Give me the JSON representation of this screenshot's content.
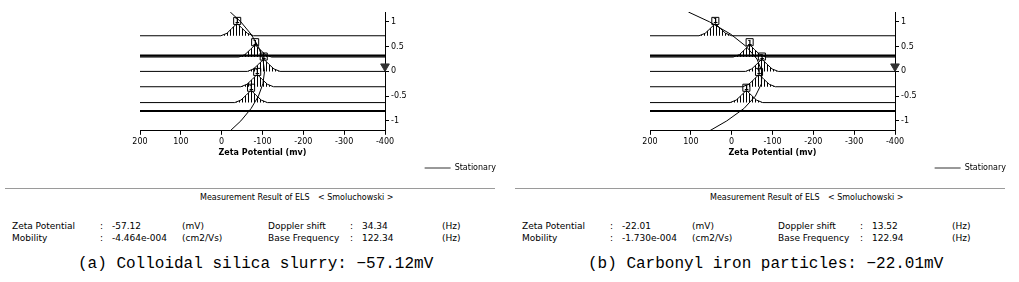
{
  "chart_data": [
    {
      "type": "line",
      "x_label": "Zeta Potential (mv)",
      "xlim": [
        200,
        -400
      ],
      "xticks": [
        200,
        100,
        0,
        -100,
        -200,
        -300,
        -400
      ],
      "ylim": [
        -1.2,
        1.2
      ],
      "yticks": [
        -1,
        -0.5,
        0,
        0.5,
        1
      ],
      "grid": false,
      "legend": "bottom-right",
      "series": [
        {
          "type": "line",
          "color": "#000000",
          "line_style": "bold",
          "x": [
            200,
            -400
          ],
          "values": [
            0.32,
            0.32
          ]
        },
        {
          "type": "line",
          "color": "#000000",
          "line_style": "bold",
          "x": [
            200,
            -400
          ],
          "values": [
            -0.8,
            -0.8
          ]
        },
        {
          "type": "area",
          "color": "#000000",
          "line_style": "solid",
          "x": [
            200,
            2,
            -13,
            -25,
            -38,
            -50,
            -63,
            -78,
            -400
          ],
          "values": [
            0.72,
            0.72,
            0.77,
            0.87,
            0.97,
            0.87,
            0.77,
            0.72,
            0.72
          ]
        },
        {
          "type": "area",
          "color": "#000000",
          "line_style": "solid",
          "x": [
            200,
            -42,
            -57,
            -70,
            -82,
            -94,
            -107,
            -122,
            -400
          ],
          "values": [
            0.29,
            0.29,
            0.34,
            0.44,
            0.54,
            0.44,
            0.34,
            0.29,
            0.29
          ]
        },
        {
          "type": "area",
          "color": "#000000",
          "line_style": "solid",
          "x": [
            200,
            -63,
            -78,
            -91,
            -103,
            -115,
            -128,
            -143,
            -400
          ],
          "values": [
            0,
            0,
            0.05,
            0.15,
            0.25,
            0.15,
            0.05,
            0,
            0
          ]
        },
        {
          "type": "area",
          "color": "#000000",
          "line_style": "solid",
          "x": [
            200,
            -47,
            -62,
            -75,
            -87,
            -99,
            -112,
            -127,
            -400
          ],
          "values": [
            -0.31,
            -0.31,
            -0.26,
            -0.16,
            -0.06,
            -0.16,
            -0.26,
            -0.31,
            -0.31
          ]
        },
        {
          "type": "area",
          "color": "#000000",
          "line_style": "solid",
          "x": [
            200,
            -32,
            -47,
            -60,
            -72,
            -84,
            -97,
            -112,
            -400
          ],
          "values": [
            -0.63,
            -0.63,
            -0.58,
            -0.48,
            -0.38,
            -0.48,
            -0.58,
            -0.63,
            -0.63
          ]
        },
        {
          "type": "line",
          "color": "#000000",
          "line_style": "solid",
          "x": [
            -21,
            -47,
            -72,
            -90,
            -101,
            -105,
            -101,
            -90,
            -72,
            -47,
            -21
          ],
          "values": [
            1.2,
            1.0,
            0.75,
            0.5,
            0.25,
            0,
            -0.25,
            -0.5,
            -0.75,
            -1.0,
            -1.2
          ]
        },
        {
          "type": "scatter",
          "color": "#000000",
          "marker": "square",
          "x": [
            -38,
            -82,
            -103,
            -87,
            -72
          ],
          "values": [
            1.02,
            0.59,
            0.3,
            -0.01,
            -0.33
          ],
          "labels": [
            "1",
            "1",
            "1",
            "1",
            "1"
          ]
        },
        {
          "type": "scatter",
          "name": "Stationary",
          "color": "#333333",
          "marker": "triangle",
          "line_style": "dashed",
          "x": [
            -400
          ],
          "values": [
            0.1
          ]
        }
      ]
    },
    {
      "type": "line",
      "x_label": "Zeta Potential (mv)",
      "xlim": [
        200,
        -400
      ],
      "xticks": [
        200,
        100,
        0,
        -100,
        -200,
        -300,
        -400
      ],
      "ylim": [
        -1.2,
        1.2
      ],
      "yticks": [
        -1,
        -0.5,
        0,
        0.5,
        1
      ],
      "grid": false,
      "legend": "bottom-right",
      "series": [
        {
          "type": "line",
          "color": "#000000",
          "line_style": "bold",
          "x": [
            200,
            -400
          ],
          "values": [
            0.32,
            0.32
          ]
        },
        {
          "type": "line",
          "color": "#000000",
          "line_style": "bold",
          "x": [
            200,
            -400
          ],
          "values": [
            -0.8,
            -0.8
          ]
        },
        {
          "type": "area",
          "color": "#000000",
          "line_style": "solid",
          "x": [
            200,
            80,
            65,
            52,
            40,
            28,
            15,
            0,
            -400
          ],
          "values": [
            0.72,
            0.72,
            0.77,
            0.87,
            0.97,
            0.87,
            0.77,
            0.72,
            0.72
          ]
        },
        {
          "type": "area",
          "color": "#000000",
          "line_style": "solid",
          "x": [
            200,
            -4,
            -19,
            -32,
            -44,
            -56,
            -69,
            -84,
            -400
          ],
          "values": [
            0.29,
            0.29,
            0.34,
            0.44,
            0.54,
            0.44,
            0.34,
            0.29,
            0.29
          ]
        },
        {
          "type": "area",
          "color": "#000000",
          "line_style": "solid",
          "x": [
            200,
            -34,
            -49,
            -62,
            -74,
            -86,
            -99,
            -114,
            -400
          ],
          "values": [
            0,
            0,
            0.05,
            0.15,
            0.25,
            0.15,
            0.05,
            0,
            0
          ]
        },
        {
          "type": "area",
          "color": "#000000",
          "line_style": "solid",
          "x": [
            200,
            -27,
            -42,
            -55,
            -67,
            -79,
            -92,
            -107,
            -400
          ],
          "values": [
            -0.31,
            -0.31,
            -0.26,
            -0.16,
            -0.06,
            -0.16,
            -0.26,
            -0.31,
            -0.31
          ]
        },
        {
          "type": "area",
          "color": "#000000",
          "line_style": "solid",
          "x": [
            200,
            4,
            -11,
            -24,
            -36,
            -48,
            -61,
            -76,
            -400
          ],
          "values": [
            -0.63,
            -0.63,
            -0.58,
            -0.48,
            -0.38,
            -0.48,
            -0.58,
            -0.63,
            -0.63
          ]
        },
        {
          "type": "line",
          "color": "#000000",
          "line_style": "solid",
          "x": [
            106,
            54,
            2,
            -36,
            -62,
            -74,
            -73,
            -58,
            -30,
            12,
            54
          ],
          "values": [
            1.2,
            1.0,
            0.75,
            0.5,
            0.25,
            0,
            -0.25,
            -0.5,
            -0.75,
            -1.0,
            -1.2
          ]
        },
        {
          "type": "scatter",
          "color": "#000000",
          "marker": "square",
          "x": [
            40,
            -44,
            -74,
            -67,
            -36
          ],
          "values": [
            1.02,
            0.59,
            0.3,
            -0.01,
            -0.33
          ],
          "labels": [
            "1",
            "1",
            "1",
            "1",
            "1"
          ]
        },
        {
          "type": "scatter",
          "name": "Stationary",
          "color": "#333333",
          "marker": "triangle",
          "line_style": "dashed",
          "x": [
            -400
          ],
          "values": [
            0.1
          ]
        }
      ]
    }
  ],
  "results": [
    {
      "heading": "Measurement Result of ELS",
      "method": "< Smoluchowski >",
      "rows": [
        [
          "Zeta Potential",
          ":",
          "-57.12",
          "(mV)",
          "Doppler shift",
          ":",
          "34.34",
          "(Hz)"
        ],
        [
          "Mobility",
          ":",
          "-4.464e-004",
          "(cm2/Vs)",
          "Base Frequency",
          ":",
          "122.34",
          "(Hz)"
        ]
      ]
    },
    {
      "heading": "Measurement Result of ELS",
      "method": "< Smoluchowski >",
      "rows": [
        [
          "Zeta Potential",
          ":",
          "-22.01",
          "(mV)",
          "Doppler shift",
          ":",
          "13.52",
          "(Hz)"
        ],
        [
          "Mobility",
          ":",
          "-1.730e-004",
          "(cm2/Vs)",
          "Base Frequency",
          ":",
          "122.94",
          "(Hz)"
        ]
      ]
    }
  ],
  "captions": [
    "(a) Colloidal silica slurry: −57.12mV",
    "(b) Carbonyl iron particles: −22.01mV"
  ]
}
